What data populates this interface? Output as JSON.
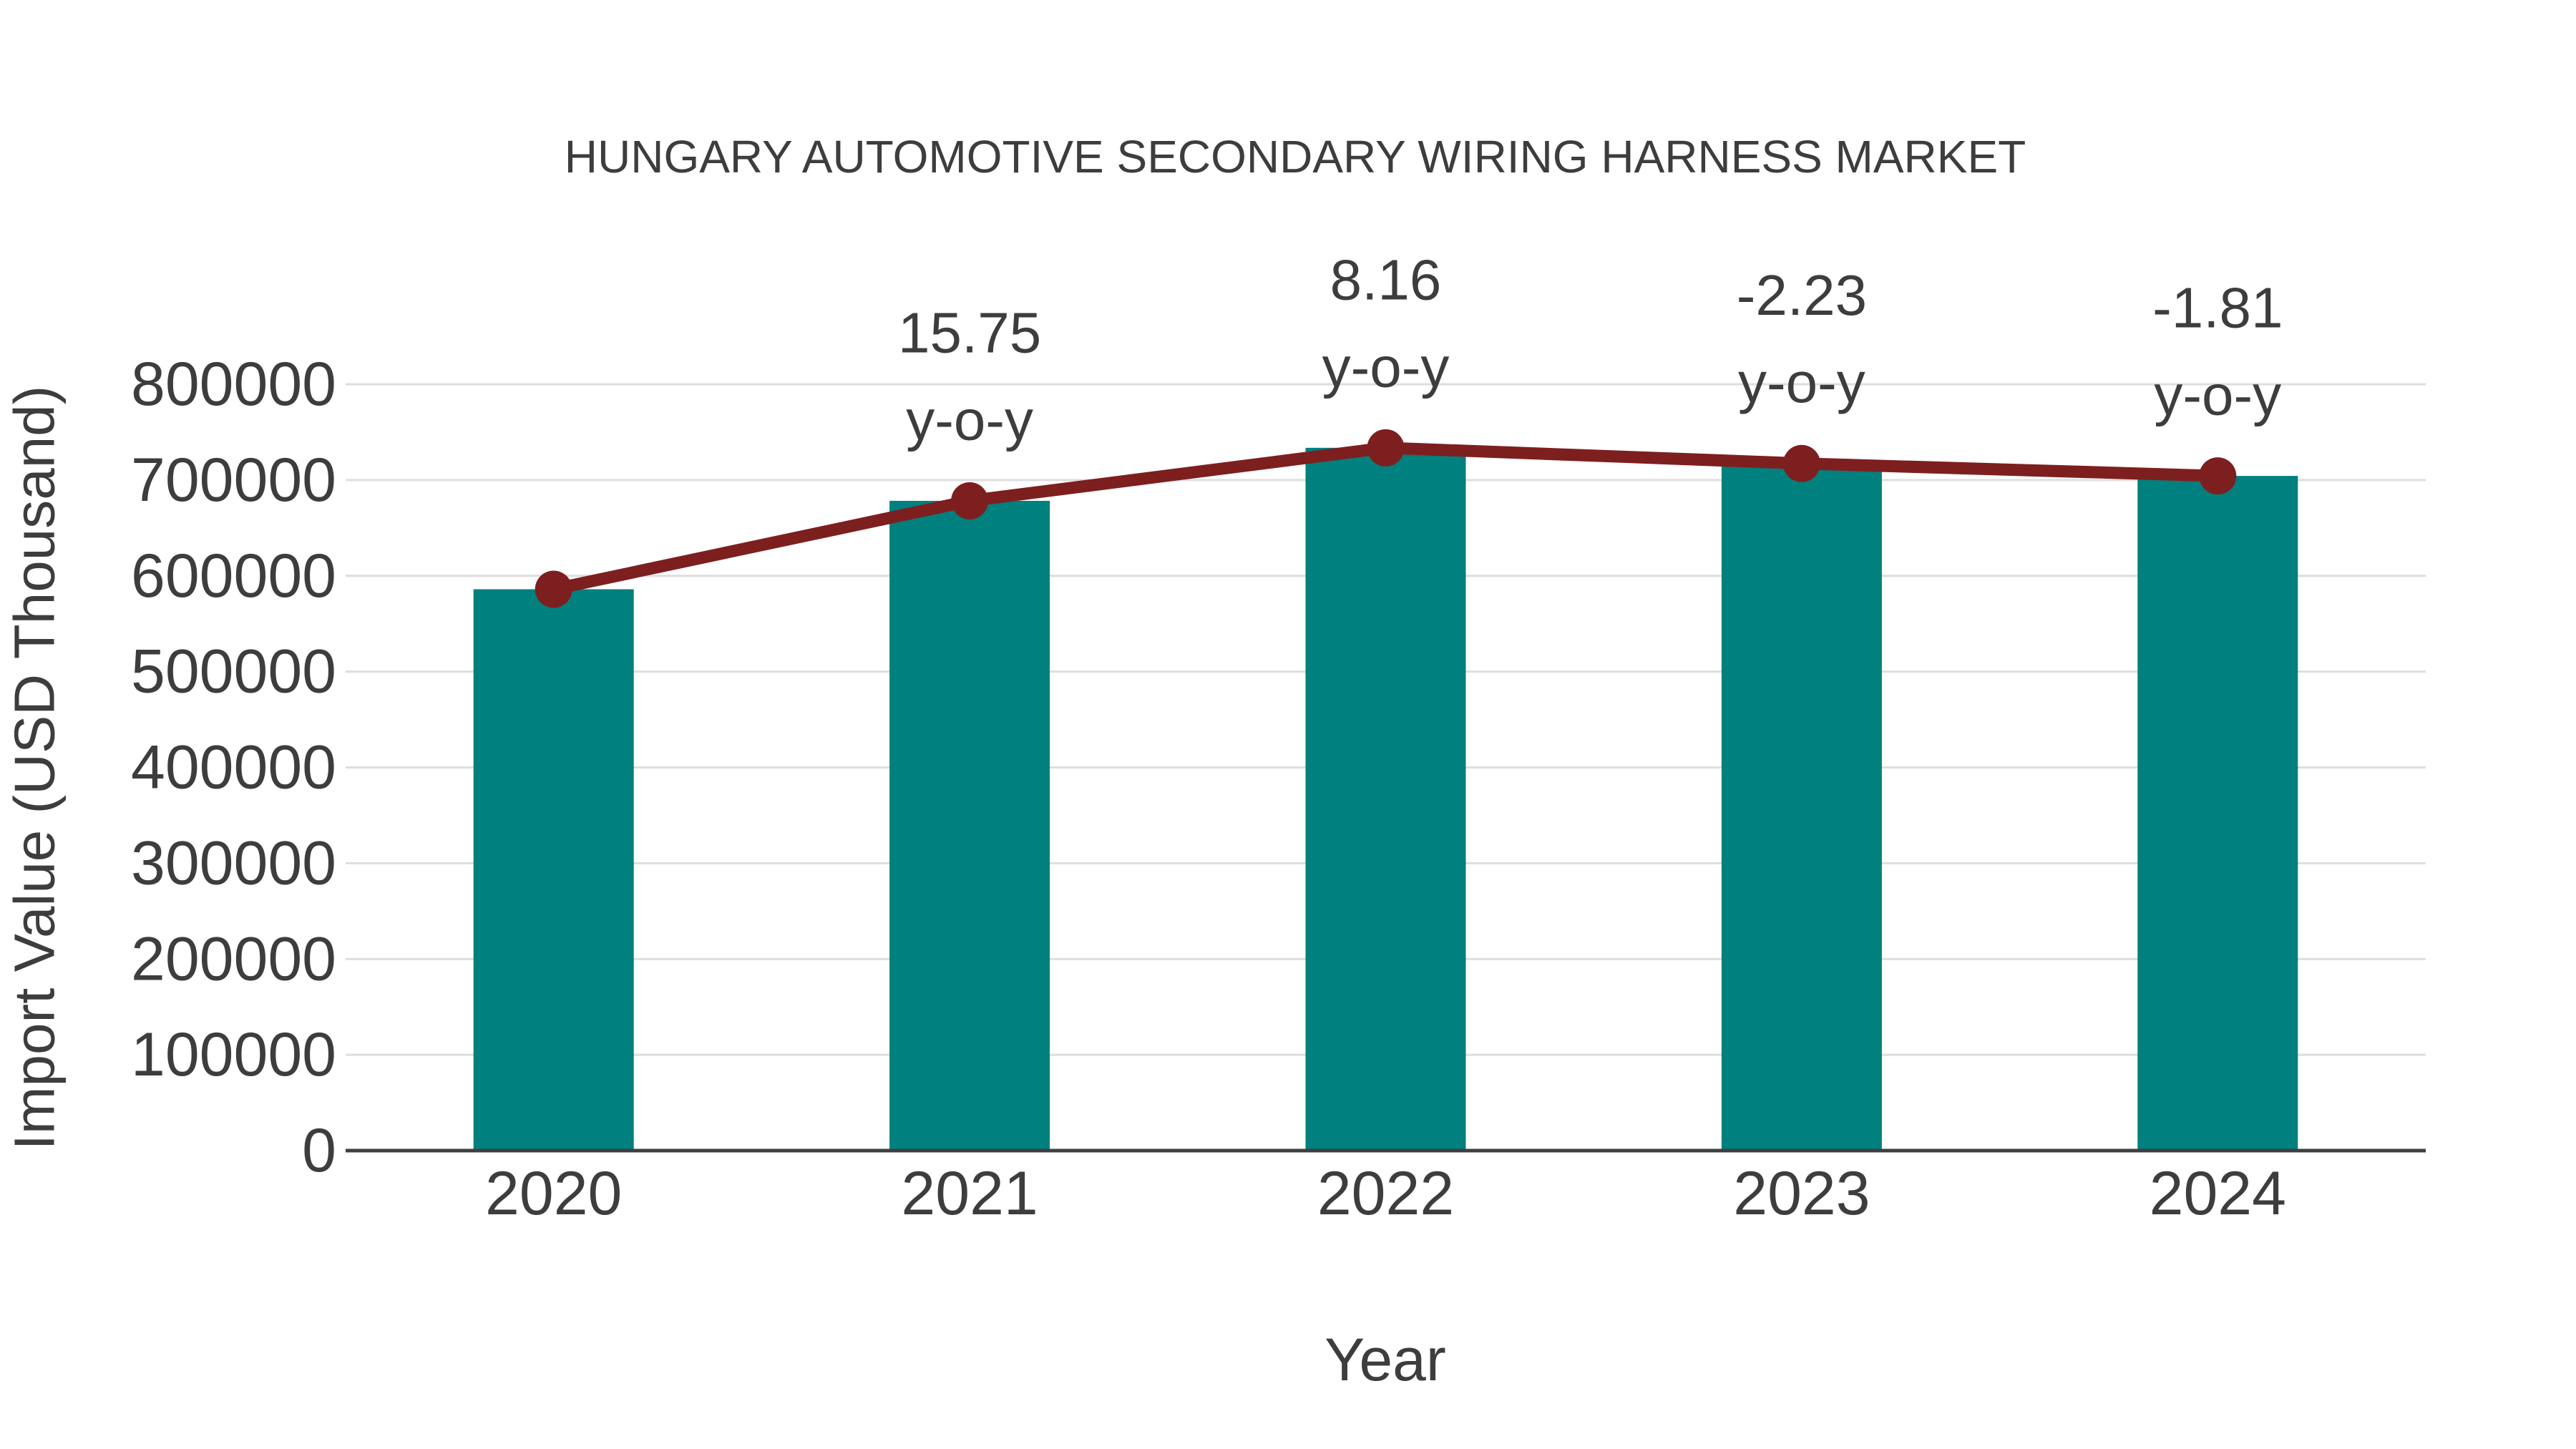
{
  "figure": {
    "background": "#ffffff"
  },
  "chart_data": {
    "type": "bar",
    "overlay_type": "line",
    "title": "HUNGARY AUTOMOTIVE SECONDARY WIRING HARNESS MARKET",
    "xlabel": "Year",
    "ylabel": "Import Value (USD Thousand)",
    "categories": [
      "2020",
      "2021",
      "2022",
      "2023",
      "2024"
    ],
    "series": [
      {
        "name": "Import Value (USD Thousand)",
        "type": "bar",
        "color": "#00807e",
        "values": [
          586000,
          678300,
          733650,
          717290,
          704300
        ]
      },
      {
        "name": "Import Value trend",
        "type": "line",
        "color": "#7d1f1f",
        "values": [
          586000,
          678300,
          733650,
          717290,
          704300
        ]
      }
    ],
    "annotations": [
      {
        "category": "2021",
        "value_label": "15.75",
        "suffix_label": "y-o-y"
      },
      {
        "category": "2022",
        "value_label": "8.16",
        "suffix_label": "y-o-y"
      },
      {
        "category": "2023",
        "value_label": "-2.23",
        "suffix_label": "y-o-y"
      },
      {
        "category": "2024",
        "value_label": "-1.81",
        "suffix_label": "y-o-y"
      }
    ],
    "yticks": [
      {
        "value": 0,
        "label": "0"
      },
      {
        "value": 100000,
        "label": "100000"
      },
      {
        "value": 200000,
        "label": "200000"
      },
      {
        "value": 300000,
        "label": "300000"
      },
      {
        "value": 400000,
        "label": "400000"
      },
      {
        "value": 500000,
        "label": "500000"
      },
      {
        "value": 600000,
        "label": "600000"
      },
      {
        "value": 700000,
        "label": "700000"
      },
      {
        "value": 800000,
        "label": "800000"
      }
    ],
    "ylim": [
      0,
      800000
    ],
    "grid": true,
    "legend": false,
    "colors": {
      "text": "#3d3d3d",
      "gridline": "#dedede",
      "axis_line": "#3f3f3f",
      "bar": "#00807e",
      "line": "#7d1f1f"
    }
  }
}
